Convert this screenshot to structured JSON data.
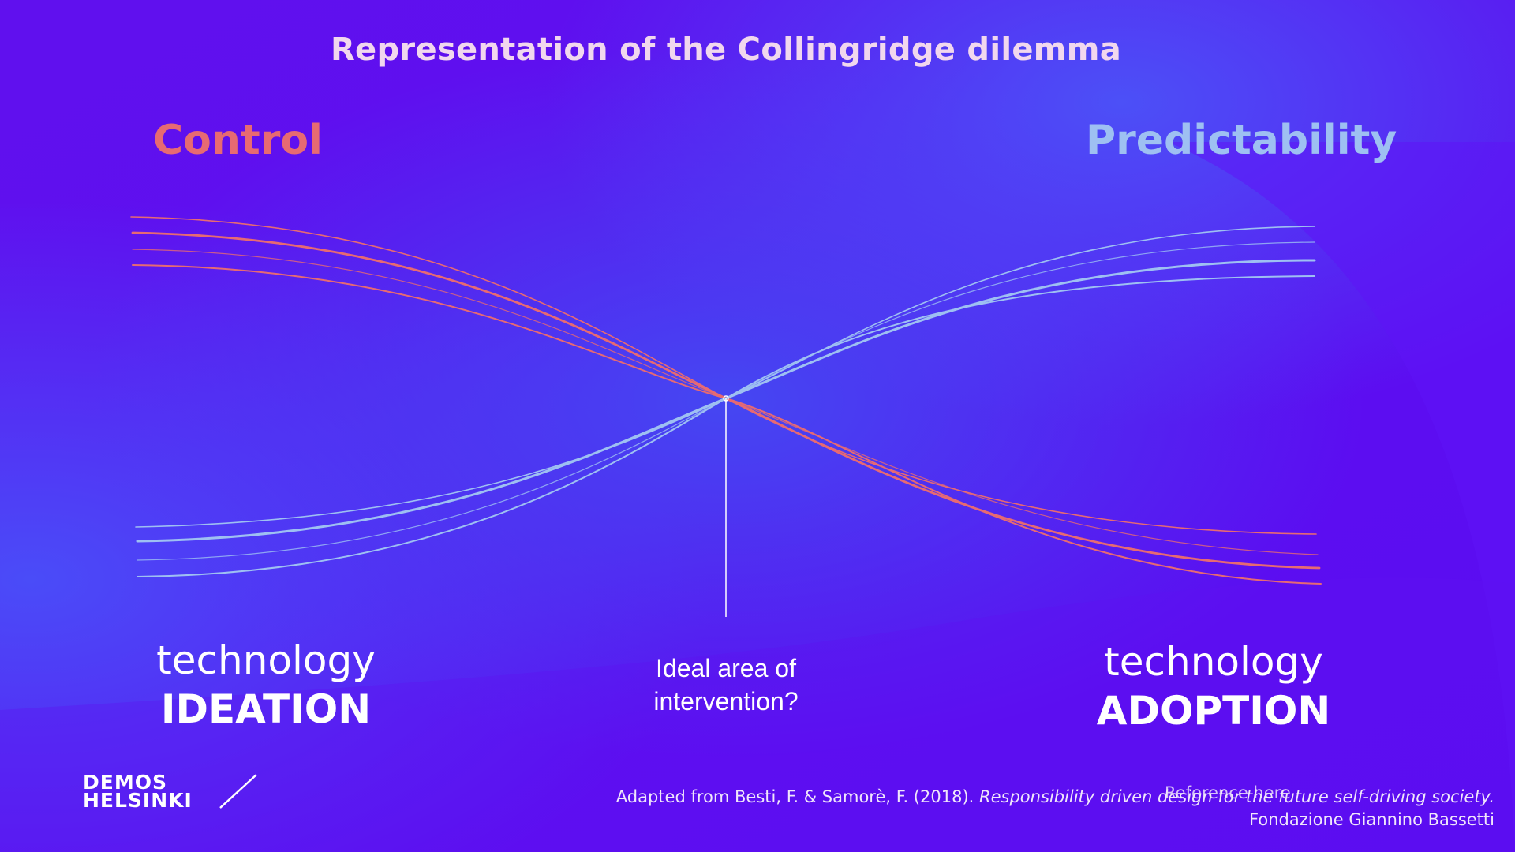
{
  "title": "Representation of the Collingridge dilemma",
  "axes_labels": {
    "control": "Control",
    "predictability": "Predictability"
  },
  "stages": {
    "left": {
      "line1": "technology",
      "line2": "IDEATION"
    },
    "right": {
      "line1": "technology",
      "line2": "ADOPTION"
    }
  },
  "intervention": {
    "line1": "Ideal area of",
    "line2": "intervention?"
  },
  "logo": {
    "line1": "DEMOS",
    "line2": "HELSINKI"
  },
  "citation": {
    "prefix": "Adapted from Besti, F. & Samorè, F. (2018). ",
    "italic": "Responsibility driven design for the future self-driving society.",
    "line2": "Fondazione Giannino Bassetti"
  },
  "reference_placeholder": "Reference here",
  "colors": {
    "control": "#e76a72",
    "predictability": "#9ec0f2",
    "background": "#5a12ee",
    "title": "#f1d7ee"
  }
}
